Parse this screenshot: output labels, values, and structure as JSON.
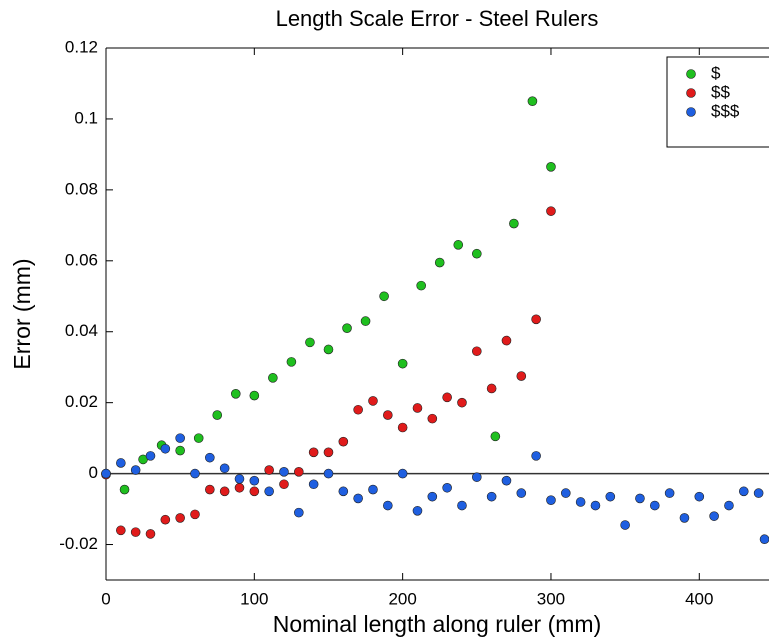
{
  "chart_data": {
    "type": "scatter",
    "title": "Length Scale Error - Steel Rulers",
    "xlabel": "Nominal length along ruler (mm)",
    "ylabel": "Error (mm)",
    "xlim": [
      0,
      447
    ],
    "xticks": [
      0,
      100,
      200,
      300,
      400
    ],
    "ylim": [
      -0.03,
      0.12
    ],
    "yticks": [
      0.12,
      0.1,
      0.08,
      0.06,
      0.04,
      0.02,
      0,
      -0.02
    ],
    "zero_line": true,
    "legend": "upper right",
    "series": [
      {
        "name": "$",
        "color": "#1fbf1f",
        "x": [
          0,
          12.5,
          25,
          37.5,
          50,
          62.5,
          75,
          87.5,
          100,
          112.5,
          125,
          137.5,
          150,
          162.5,
          175,
          187.5,
          200,
          212.5,
          225,
          237.5,
          250,
          262.5,
          275,
          287.5,
          300
        ],
        "values": [
          0,
          -0.0045,
          0.004,
          0.008,
          0.0065,
          0.01,
          0.0165,
          0.0225,
          0.022,
          0.027,
          0.0315,
          0.037,
          0.035,
          0.041,
          0.043,
          0.05,
          0.031,
          0.053,
          0.0595,
          0.0645,
          0.062,
          0.0105,
          0.0705,
          0.105,
          0.0865
        ]
      },
      {
        "name": "$$",
        "color": "#e01b1b",
        "x": [
          0,
          10,
          20,
          30,
          40,
          50,
          60,
          70,
          80,
          90,
          100,
          110,
          120,
          130,
          140,
          150,
          160,
          170,
          180,
          190,
          200,
          210,
          220,
          230,
          240,
          250,
          260,
          270,
          280,
          290,
          300
        ],
        "values": [
          -0.0003,
          -0.016,
          -0.0165,
          -0.017,
          -0.013,
          -0.0125,
          -0.0115,
          -0.0045,
          -0.005,
          -0.004,
          -0.005,
          0.001,
          -0.003,
          0.0005,
          0.006,
          0.006,
          0.009,
          0.018,
          0.0205,
          0.0165,
          0.013,
          0.0185,
          0.0155,
          0.0215,
          0.02,
          0.0345,
          0.024,
          0.0375,
          0.0275,
          0.0435,
          0.074
        ]
      },
      {
        "name": "$$$",
        "color": "#1f5fe0",
        "x": [
          0,
          10,
          20,
          30,
          40,
          50,
          60,
          70,
          80,
          90,
          100,
          110,
          120,
          130,
          140,
          150,
          160,
          170,
          180,
          190,
          200,
          210,
          220,
          230,
          240,
          250,
          260,
          270,
          280,
          290,
          300,
          310,
          320,
          330,
          340,
          350,
          360,
          370,
          380,
          390,
          400,
          410,
          420,
          430,
          440,
          444
        ],
        "values": [
          0,
          0.003,
          0.001,
          0.005,
          0.007,
          0.01,
          0,
          0.0045,
          0.0015,
          -0.0015,
          -0.002,
          -0.005,
          0.0005,
          -0.011,
          -0.003,
          0,
          -0.005,
          -0.007,
          -0.0045,
          -0.009,
          0,
          -0.0105,
          -0.0065,
          -0.004,
          -0.009,
          -0.001,
          -0.0065,
          -0.002,
          -0.0055,
          0.005,
          -0.0075,
          -0.0055,
          -0.008,
          -0.009,
          -0.0065,
          -0.0145,
          -0.007,
          -0.009,
          -0.0055,
          -0.0125,
          -0.0065,
          -0.012,
          -0.009,
          -0.005,
          -0.0055,
          -0.0185
        ]
      }
    ]
  }
}
